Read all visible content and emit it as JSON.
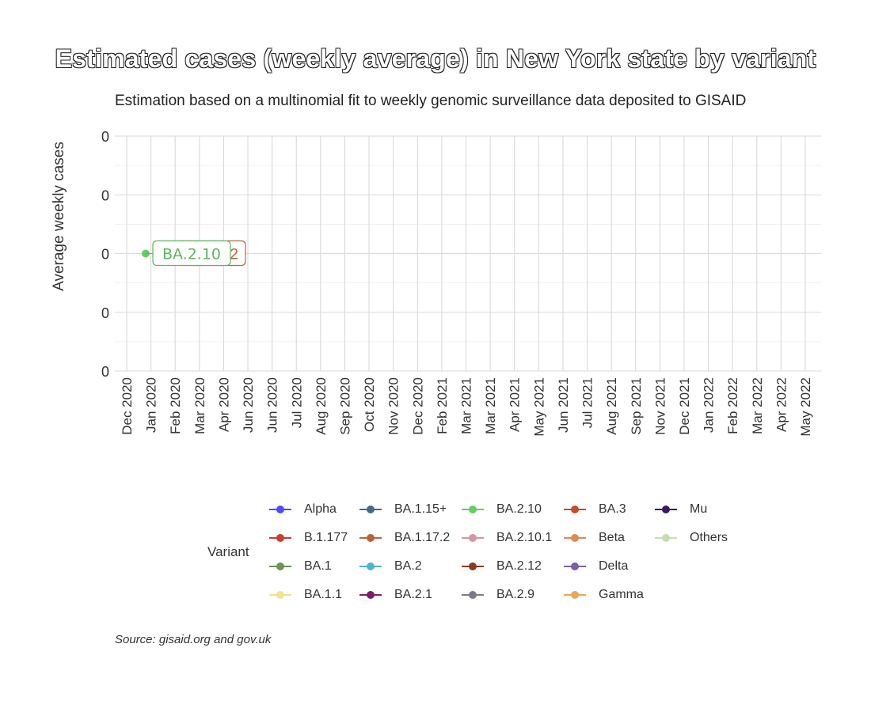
{
  "title": "Estimated cases (weekly average) in New York state by variant",
  "subtitle": "Estimation based on a multinomial fit to weekly genomic surveillance data deposited to GISAID",
  "caption": "Source: gisaid.org and gov.uk",
  "legend_title": "Variant",
  "chart_data": {
    "type": "line",
    "title": "Estimated cases (weekly average) in New York state by variant",
    "ylabel": "Average weekly cases",
    "xlabel": "",
    "y_ticks": [
      "0",
      "0",
      "0",
      "0",
      "0"
    ],
    "x_ticks": [
      "Dec 2020",
      "Jan 2020",
      "Feb 2020",
      "Mar 2020",
      "Apr 2020",
      "Jun 2020",
      "Jun 2020",
      "Jul 2020",
      "Aug 2020",
      "Sep 2020",
      "Oct 2020",
      "Nov 2020",
      "Dec 2020",
      "Feb 2021",
      "Mar 2021",
      "Mar 2021",
      "Apr 2021",
      "May 2021",
      "Jun 2021",
      "Jul 2021",
      "Aug 2021",
      "Sep 2021",
      "Nov 2021",
      "Dec 2021",
      "Jan 2022",
      "Feb 2022",
      "Mar 2022",
      "Apr 2022",
      "May 2022"
    ],
    "grid": true,
    "legend_position": "bottom",
    "series": [
      {
        "name": "Alpha",
        "color": "#4c4cff"
      },
      {
        "name": "B.1.177",
        "color": "#cc3c33"
      },
      {
        "name": "BA.1",
        "color": "#6e9451"
      },
      {
        "name": "BA.1.1",
        "color": "#f0e38b"
      },
      {
        "name": "BA.1.15+",
        "color": "#466a84"
      },
      {
        "name": "BA.1.17.2",
        "color": "#b8633a"
      },
      {
        "name": "BA.2",
        "color": "#4eb3d3"
      },
      {
        "name": "BA.2.1",
        "color": "#7c1d6f"
      },
      {
        "name": "BA.2.10",
        "color": "#66cc66"
      },
      {
        "name": "BA.2.10.1",
        "color": "#d795a8"
      },
      {
        "name": "BA.2.12",
        "color": "#8b3a1e"
      },
      {
        "name": "BA.2.9",
        "color": "#7a7a8c"
      },
      {
        "name": "BA.3",
        "color": "#c24d28"
      },
      {
        "name": "Beta",
        "color": "#e08a55"
      },
      {
        "name": "Delta",
        "color": "#7a60a8"
      },
      {
        "name": "Gamma",
        "color": "#e8a85a"
      },
      {
        "name": "Mu",
        "color": "#3a1a5a"
      },
      {
        "name": "Others",
        "color": "#c8dcb4"
      }
    ],
    "points": [
      {
        "series": "BA.2.10",
        "x": "Dec 2020",
        "y": 0
      }
    ],
    "point_labels": [
      {
        "series": "BA.2.12",
        "text": "2",
        "color": "#b8633a"
      },
      {
        "series": "BA.2.10",
        "text": "BA.2.10",
        "color": "#5cb85c"
      }
    ]
  }
}
